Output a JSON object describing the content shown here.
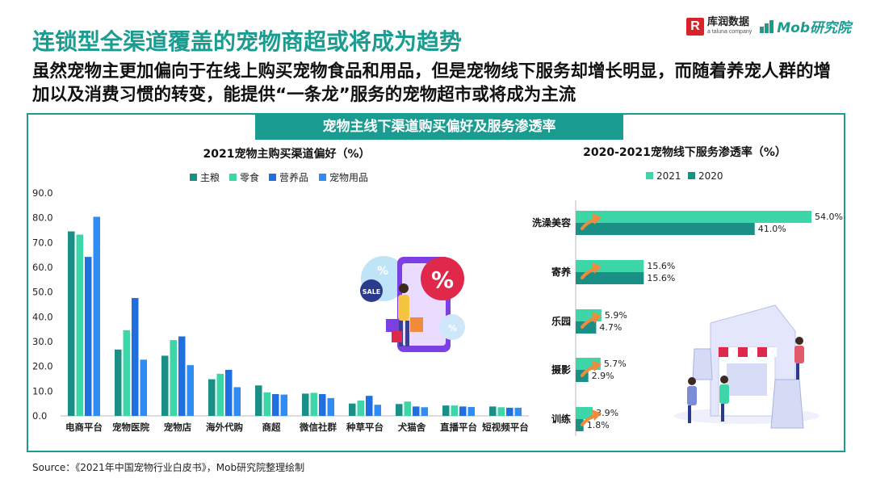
{
  "header": {
    "title": "连锁型全渠道覆盖的宠物商超或将成为趋势",
    "subtitle": "虽然宠物主更加偏向于在线上购买宠物食品和用品，但是宠物线下服务却增长明显，而随着养宠人群的增加以及消费习惯的转变，能提供“一条龙”服务的宠物超市或将成为主流"
  },
  "logos": {
    "kuxun_cn": "库润数据",
    "kuxun_en": "a taluna company",
    "mob": "Mob研究院"
  },
  "banner": "宠物主线下渠道购买偏好及服务渗透率",
  "illustration_labels": {
    "percent": "%",
    "sale": "SALE"
  },
  "source": "Source：《2021年中国宠物行业白皮书》，Mob研究院整理绘制",
  "colors": {
    "teal": "#1a9c90",
    "dark_teal": "#1a8f86",
    "mint": "#3dd6a8",
    "blue": "#1f6fe0",
    "light_blue": "#2f8cf5",
    "orange": "#f08a3c"
  },
  "chart_data": [
    {
      "type": "bar",
      "title": "2021宠物主购买渠道偏好（%）",
      "categories": [
        "电商平台",
        "宠物医院",
        "宠物店",
        "海外代购",
        "商超",
        "微信社群",
        "种草平台",
        "犬猫舍",
        "直播平台",
        "短视频平台"
      ],
      "series": [
        {
          "name": "主粮",
          "color": "#1a8f86",
          "values": [
            74.5,
            26.8,
            24.3,
            14.8,
            12.3,
            9.0,
            5.0,
            4.8,
            4.2,
            3.8
          ]
        },
        {
          "name": "零食",
          "color": "#3dd6a8",
          "values": [
            73.2,
            34.6,
            30.6,
            17.0,
            9.5,
            9.3,
            6.2,
            5.8,
            4.2,
            3.5
          ]
        },
        {
          "name": "营养品",
          "color": "#1f6fe0",
          "values": [
            64.2,
            47.6,
            32.1,
            18.6,
            8.8,
            8.8,
            8.1,
            3.8,
            3.8,
            3.3
          ]
        },
        {
          "name": "宠物用品",
          "color": "#2f8cf5",
          "values": [
            80.4,
            22.7,
            20.5,
            11.6,
            8.6,
            7.2,
            4.5,
            3.5,
            3.6,
            3.3
          ]
        }
      ],
      "ylim": [
        0,
        90
      ],
      "yticks": [
        "0.0",
        "10.0",
        "20.0",
        "30.0",
        "40.0",
        "50.0",
        "60.0",
        "70.0",
        "80.0",
        "90.0"
      ],
      "legend": "top"
    },
    {
      "type": "bar",
      "orientation": "horizontal",
      "title": "2020-2021宠物线下服务渗透率（%）",
      "categories": [
        "洗澡美容",
        "寄养",
        "乐园",
        "摄影",
        "训练"
      ],
      "series": [
        {
          "name": "2021",
          "color": "#3dd6a8",
          "values": [
            54.0,
            15.6,
            5.9,
            5.7,
            3.9
          ],
          "labels": [
            "54.0%",
            "15.6%",
            "5.9%",
            "5.7%",
            "3.9%"
          ]
        },
        {
          "name": "2020",
          "color": "#1a8f86",
          "values": [
            41.0,
            15.6,
            4.7,
            2.9,
            1.8
          ],
          "labels": [
            "41.0%",
            "15.6%",
            "4.7%",
            "2.9%",
            "1.8%"
          ]
        }
      ],
      "xlim": [
        0,
        54
      ],
      "legend": "top"
    }
  ]
}
